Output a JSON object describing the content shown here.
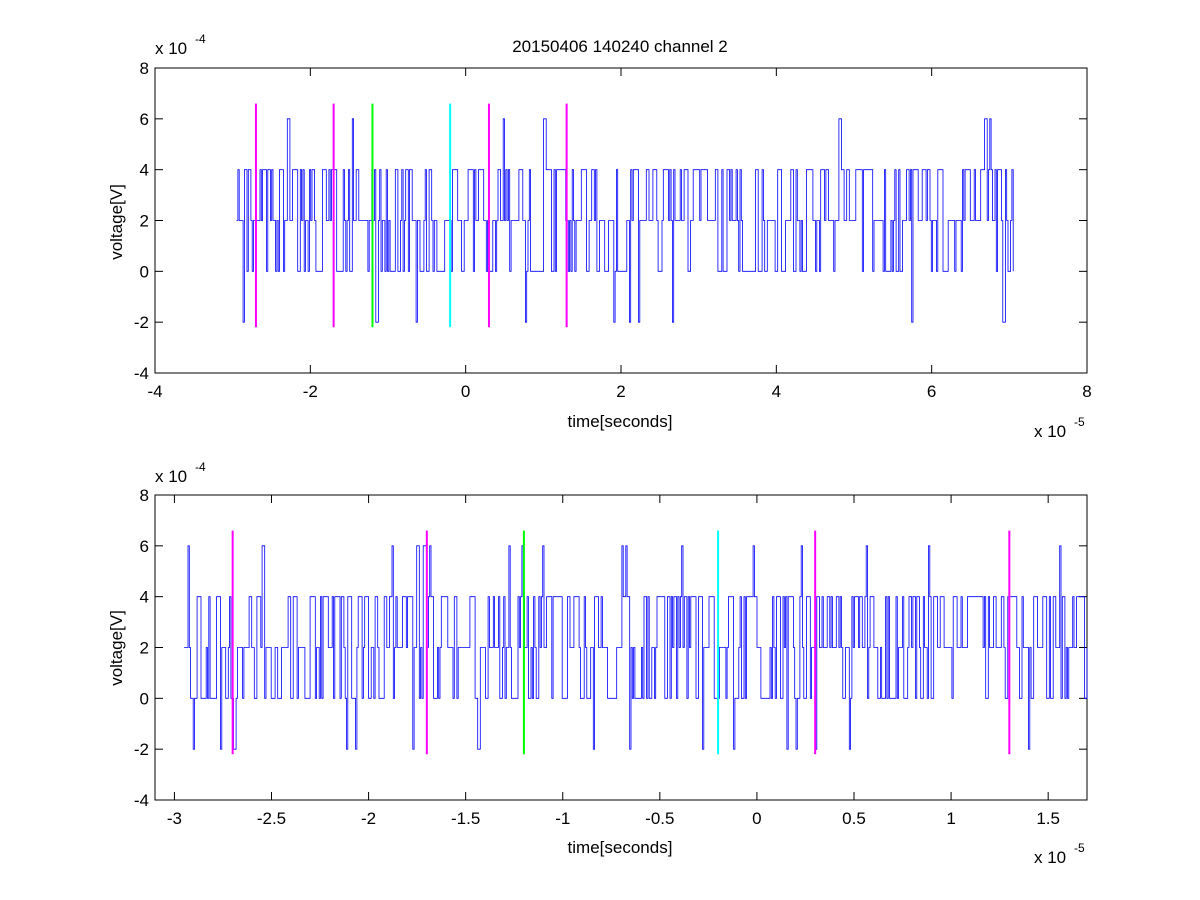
{
  "figure_title": "20150406 140240 channel 2",
  "chart_data": [
    {
      "type": "line",
      "title": "20150406 140240 channel 2",
      "xlabel": "time[seconds]",
      "ylabel": "voltage[V]",
      "x_exponent_label": "x 10",
      "x_exponent": "-5",
      "y_exponent_label": "x 10",
      "y_exponent": "-4",
      "xlim": [
        -4,
        8
      ],
      "ylim": [
        -4,
        8
      ],
      "xticks": [
        "-4",
        "-2",
        "0",
        "2",
        "4",
        "6",
        "8"
      ],
      "yticks": [
        "-4",
        "-2",
        "0",
        "2",
        "4",
        "6",
        "8"
      ],
      "grid": false,
      "signal": {
        "name": "voltage",
        "color": "#0000ff",
        "x_start": -2.95,
        "x_end": 7.05,
        "levels": [
          -2,
          0,
          2,
          4,
          6
        ],
        "seed": 7
      },
      "markers": [
        {
          "x": -2.7,
          "y": [
            -2.2,
            6.6
          ],
          "color": "#ff00ff"
        },
        {
          "x": -1.7,
          "y": [
            -2.2,
            6.6
          ],
          "color": "#ff00ff"
        },
        {
          "x": -1.2,
          "y": [
            -2.2,
            6.6
          ],
          "color": "#00ff00"
        },
        {
          "x": -0.2,
          "y": [
            -2.2,
            6.6
          ],
          "color": "#00ffff"
        },
        {
          "x": 0.3,
          "y": [
            -2.2,
            6.6
          ],
          "color": "#ff00ff"
        },
        {
          "x": 1.3,
          "y": [
            -2.2,
            6.6
          ],
          "color": "#ff00ff"
        }
      ]
    },
    {
      "type": "line",
      "title": "",
      "xlabel": "time[seconds]",
      "ylabel": "voltage[V]",
      "x_exponent_label": "x 10",
      "x_exponent": "-5",
      "y_exponent_label": "x 10",
      "y_exponent": "-4",
      "xlim": [
        -3.1,
        1.7
      ],
      "ylim": [
        -4,
        8
      ],
      "xticks": [
        "-3",
        "-2.5",
        "-2",
        "-1.5",
        "-1",
        "-0.5",
        "0",
        "0.5",
        "1",
        "1.5"
      ],
      "xtick_values": [
        -3,
        -2.5,
        -2,
        -1.5,
        -1,
        -0.5,
        0,
        0.5,
        1,
        1.5
      ],
      "yticks": [
        "-4",
        "-2",
        "0",
        "2",
        "4",
        "6",
        "8"
      ],
      "grid": false,
      "signal": {
        "name": "voltage",
        "color": "#0000ff",
        "x_start": -2.95,
        "x_end": 1.7,
        "levels": [
          -2,
          0,
          2,
          4,
          6
        ],
        "seed": 13
      },
      "markers": [
        {
          "x": -2.7,
          "y": [
            -2.2,
            6.6
          ],
          "color": "#ff00ff"
        },
        {
          "x": -1.7,
          "y": [
            -2.2,
            6.6
          ],
          "color": "#ff00ff"
        },
        {
          "x": -1.2,
          "y": [
            -2.2,
            6.6
          ],
          "color": "#00ff00"
        },
        {
          "x": -0.2,
          "y": [
            -2.2,
            6.6
          ],
          "color": "#00ffff"
        },
        {
          "x": 0.3,
          "y": [
            -2.2,
            6.6
          ],
          "color": "#ff00ff"
        },
        {
          "x": 1.3,
          "y": [
            -2.2,
            6.6
          ],
          "color": "#ff00ff"
        }
      ]
    }
  ]
}
